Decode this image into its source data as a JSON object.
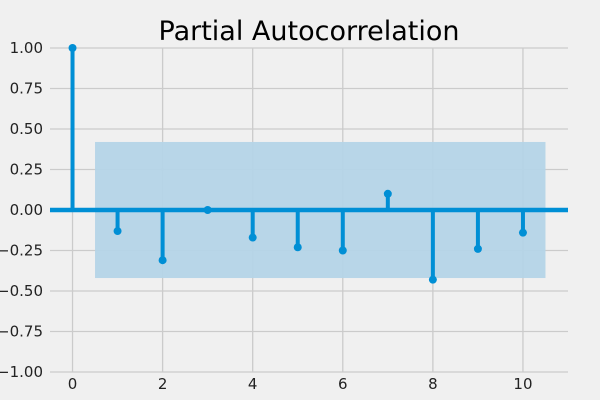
{
  "chart_data": {
    "type": "stem",
    "title": "Partial Autocorrelation",
    "xlabel": "",
    "ylabel": "",
    "x": [
      0,
      1,
      2,
      3,
      4,
      5,
      6,
      7,
      8,
      9,
      10
    ],
    "values": [
      1.0,
      -0.13,
      -0.31,
      0.0,
      -0.17,
      -0.23,
      -0.25,
      0.1,
      -0.43,
      -0.24,
      -0.14
    ],
    "confidence_band": [
      -0.42,
      0.42
    ],
    "xlim": [
      -0.5,
      11
    ],
    "ylim": [
      -1.0,
      1.0
    ],
    "x_ticks": [
      0,
      2,
      4,
      6,
      8,
      10
    ],
    "x_tick_labels": [
      "0",
      "2",
      "4",
      "6",
      "8",
      "10"
    ],
    "y_ticks": [
      1.0,
      0.75,
      0.5,
      0.25,
      0.0,
      -0.25,
      -0.5,
      -0.75,
      -1.0
    ],
    "y_tick_labels": [
      "1.00",
      "0.75",
      "0.50",
      "0.25",
      "0.00",
      "−0.25",
      "−0.50",
      "−0.75",
      "−1.00"
    ],
    "grid": true,
    "colors": {
      "series": "#008fd5",
      "band": "#b4d4e7",
      "grid": "#cbcbcb",
      "background": "#f0f0f0"
    }
  }
}
